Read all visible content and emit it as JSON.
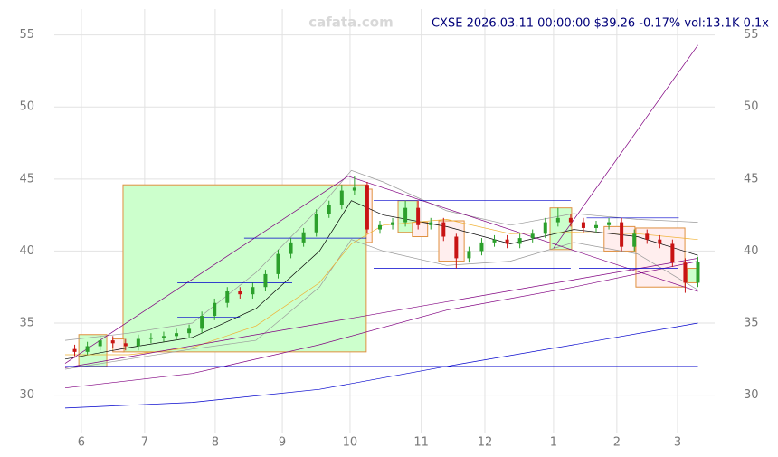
{
  "chart_data": {
    "type": "candlestick",
    "title": "CXSE 2026.03.11 00:00:00 $39.26 -0.17% vol:13.1K 0.1x",
    "watermark": "cafata.com",
    "xlim": [
      0,
      200
    ],
    "xticks": [
      {
        "value": 5.1,
        "label": "6"
      },
      {
        "value": 25,
        "label": "7"
      },
      {
        "value": 47.2,
        "label": "8"
      },
      {
        "value": 68.3,
        "label": "9"
      },
      {
        "value": 89.6,
        "label": "10"
      },
      {
        "value": 112,
        "label": "11"
      },
      {
        "value": 132,
        "label": "12"
      },
      {
        "value": 153.6,
        "label": "1"
      },
      {
        "value": 173.5,
        "label": "2"
      },
      {
        "value": 192.6,
        "label": "3"
      }
    ],
    "ylim": [
      27.4,
      56.8
    ],
    "yticks": [
      30,
      35,
      40,
      45,
      50,
      55
    ],
    "grid": true,
    "up_color": "#2ca02c",
    "down_color": "#c81414",
    "candles": {
      "x": [
        3,
        7,
        11,
        15,
        19,
        23,
        27,
        31,
        35,
        39,
        43,
        47,
        51,
        55,
        59,
        63,
        67,
        71,
        75,
        79,
        83,
        87,
        91,
        95,
        99,
        103,
        107,
        111,
        115,
        119,
        123,
        127,
        131,
        135,
        139,
        143,
        147,
        151,
        155,
        159,
        163,
        167,
        171,
        175,
        179,
        183,
        187,
        191,
        195,
        199
      ],
      "open": [
        33.2,
        33.0,
        33.4,
        33.8,
        33.6,
        33.4,
        33.9,
        34.0,
        34.1,
        34.3,
        34.6,
        35.5,
        36.4,
        37.2,
        37.0,
        37.5,
        38.4,
        39.8,
        40.6,
        41.3,
        42.6,
        43.2,
        44.2,
        44.6,
        41.5,
        41.8,
        42.0,
        43.0,
        41.8,
        42.0,
        41.0,
        39.5,
        40.0,
        40.6,
        40.8,
        40.5,
        40.9,
        41.2,
        42.0,
        42.3,
        42.0,
        41.6,
        41.8,
        42.0,
        40.3,
        41.2,
        40.8,
        40.5,
        39.2,
        37.8
      ],
      "high": [
        33.5,
        33.7,
        34.1,
        34.1,
        33.9,
        34.2,
        34.3,
        34.4,
        34.6,
        34.9,
        35.8,
        36.7,
        37.5,
        37.5,
        37.8,
        38.7,
        40.1,
        40.9,
        41.6,
        42.9,
        43.5,
        44.6,
        45.2,
        44.8,
        42.1,
        42.3,
        43.5,
        43.5,
        42.3,
        42.3,
        41.2,
        40.3,
        40.9,
        41.1,
        41.1,
        41.2,
        41.5,
        42.3,
        43.0,
        42.6,
        42.3,
        42.1,
        42.3,
        42.3,
        41.5,
        41.5,
        41.1,
        40.8,
        39.5,
        39.6
      ],
      "low": [
        32.7,
        32.8,
        33.1,
        33.3,
        33.1,
        33.1,
        33.6,
        33.7,
        33.8,
        34.0,
        34.3,
        35.2,
        36.1,
        36.7,
        36.7,
        37.2,
        38.1,
        39.5,
        40.3,
        41.0,
        42.3,
        42.9,
        43.9,
        41.2,
        41.2,
        41.5,
        41.7,
        41.5,
        41.5,
        40.7,
        38.8,
        39.2,
        39.7,
        40.3,
        40.2,
        40.2,
        40.6,
        40.9,
        41.7,
        41.7,
        41.3,
        41.3,
        41.5,
        40.0,
        40.0,
        40.5,
        40.2,
        38.9,
        37.1,
        37.5
      ],
      "close": [
        33.0,
        33.4,
        33.8,
        33.6,
        33.4,
        33.9,
        34.0,
        34.1,
        34.3,
        34.6,
        35.5,
        36.4,
        37.2,
        37.0,
        37.5,
        38.4,
        39.8,
        40.6,
        41.3,
        42.6,
        43.2,
        44.2,
        44.4,
        41.5,
        41.8,
        42.0,
        43.0,
        41.8,
        42.0,
        41.0,
        39.5,
        40.0,
        40.6,
        40.8,
        40.5,
        40.9,
        41.2,
        42.0,
        42.3,
        42.0,
        41.6,
        41.8,
        42.0,
        40.3,
        41.2,
        40.8,
        40.5,
        39.2,
        37.8,
        39.26
      ]
    },
    "boxes": [
      {
        "x": [
          18.2,
          94.7
        ],
        "y": [
          33.0,
          44.6
        ],
        "fill": "#ccffcc",
        "stroke": "#e09040"
      },
      {
        "x": [
          4.3,
          13.1
        ],
        "y": [
          32.0,
          34.2
        ],
        "fill": "#ccffcc",
        "stroke": "#e09040"
      },
      {
        "x": [
          15,
          18.5
        ],
        "y": [
          33.0,
          33.9
        ],
        "fill": "#ffeeee",
        "stroke": "#e09040"
      },
      {
        "x": [
          94.7,
          96.5
        ],
        "y": [
          40.6,
          44.3
        ],
        "fill": "#ffeeee",
        "stroke": "#e09040"
      },
      {
        "x": [
          104.7,
          110.7
        ],
        "y": [
          41.3,
          43.5
        ],
        "fill": "#ccffcc",
        "stroke": "#e09040"
      },
      {
        "x": [
          109.2,
          114
        ],
        "y": [
          41.0,
          42.0
        ],
        "fill": "#ffeeee",
        "stroke": "#e09040"
      },
      {
        "x": [
          117.5,
          125.5
        ],
        "y": [
          39.3,
          42.1
        ],
        "fill": "#ffeeee",
        "stroke": "#e09040"
      },
      {
        "x": [
          152.5,
          159.3
        ],
        "y": [
          40.1,
          43.0
        ],
        "fill": "#ccffcc",
        "stroke": "#e09040"
      },
      {
        "x": [
          169.5,
          179.2
        ],
        "y": [
          40.0,
          41.7
        ],
        "fill": "#ffeeee",
        "stroke": "#e09040"
      },
      {
        "x": [
          179.5,
          194.9
        ],
        "y": [
          37.5,
          41.6
        ],
        "fill": "#ffeeee",
        "stroke": "#e09040"
      },
      {
        "x": [
          195.7,
          198.6
        ],
        "y": [
          37.8,
          38.8
        ],
        "fill": "#ccffcc",
        "stroke": "#e09040"
      }
    ],
    "lines": [
      {
        "color": "#999999",
        "x": [
          0,
          20,
          40,
          60,
          80,
          90,
          100,
          120,
          140,
          160,
          180,
          199
        ],
        "values": [
          33.8,
          34.3,
          35.0,
          38.5,
          43.0,
          45.6,
          44.8,
          42.8,
          41.8,
          42.6,
          42.2,
          42.0
        ]
      },
      {
        "color": "#999999",
        "x": [
          0,
          20,
          40,
          60,
          80,
          90,
          100,
          120,
          140,
          160,
          180,
          199
        ],
        "values": [
          31.8,
          32.5,
          33.2,
          33.8,
          37.5,
          40.8,
          40.0,
          39.0,
          39.3,
          40.6,
          39.8,
          37.3
        ]
      },
      {
        "color": "#000000",
        "x": [
          0,
          20,
          40,
          60,
          80,
          90,
          100,
          120,
          140,
          160,
          180,
          199
        ],
        "values": [
          32.5,
          33.3,
          34.0,
          36.0,
          40.0,
          43.5,
          42.5,
          41.7,
          40.5,
          41.5,
          41.0,
          39.7
        ]
      },
      {
        "color": "#f0b030",
        "x": [
          0,
          20,
          40,
          60,
          80,
          90,
          100,
          120,
          140,
          160,
          180,
          199
        ],
        "values": [
          32.8,
          32.8,
          33.3,
          34.8,
          37.8,
          40.5,
          41.8,
          42.2,
          41.2,
          41.3,
          41.2,
          40.8
        ]
      },
      {
        "color": "#800080",
        "x": [
          0,
          40,
          80,
          120,
          160,
          199
        ],
        "values": [
          30.5,
          31.5,
          33.5,
          35.9,
          37.5,
          39.3
        ]
      },
      {
        "color": "#0000cc",
        "x": [
          0,
          40,
          80,
          120,
          160,
          199
        ],
        "values": [
          29.1,
          29.5,
          30.4,
          32.0,
          33.5,
          35.0
        ]
      },
      {
        "color": "#800080",
        "x": [
          0,
          89
        ],
        "values": [
          32.2,
          45.2
        ]
      },
      {
        "color": "#800080",
        "x": [
          89,
          199
        ],
        "values": [
          45.2,
          37.2
        ]
      },
      {
        "color": "#800080",
        "x": [
          0,
          199
        ],
        "values": [
          31.9,
          39.5
        ]
      },
      {
        "color": "#800080",
        "x": [
          153.6,
          199
        ],
        "values": [
          40.2,
          54.3
        ]
      },
      {
        "color": "#0000cc",
        "x": [
          0,
          199
        ],
        "values": [
          32.0,
          32.0
        ]
      },
      {
        "color": "#0000cc",
        "x": [
          35.3,
          71.4
        ],
        "values": [
          37.8,
          37.8
        ]
      },
      {
        "color": "#0000cc",
        "x": [
          35.3,
          55
        ],
        "values": [
          35.4,
          35.4
        ]
      },
      {
        "color": "#0000cc",
        "x": [
          56.3,
          94.8
        ],
        "values": [
          40.9,
          40.9
        ]
      },
      {
        "color": "#0000cc",
        "x": [
          72,
          92
        ],
        "values": [
          45.2,
          45.2
        ]
      },
      {
        "color": "#0000cc",
        "x": [
          97,
          159
        ],
        "values": [
          43.5,
          43.5
        ]
      },
      {
        "color": "#0000cc",
        "x": [
          97,
          159
        ],
        "values": [
          38.8,
          38.8
        ]
      },
      {
        "color": "#0000cc",
        "x": [
          161.6,
          192.9
        ],
        "values": [
          38.8,
          38.8
        ]
      },
      {
        "color": "#0000cc",
        "x": [
          164,
          193
        ],
        "values": [
          42.3,
          42.3
        ]
      }
    ]
  }
}
